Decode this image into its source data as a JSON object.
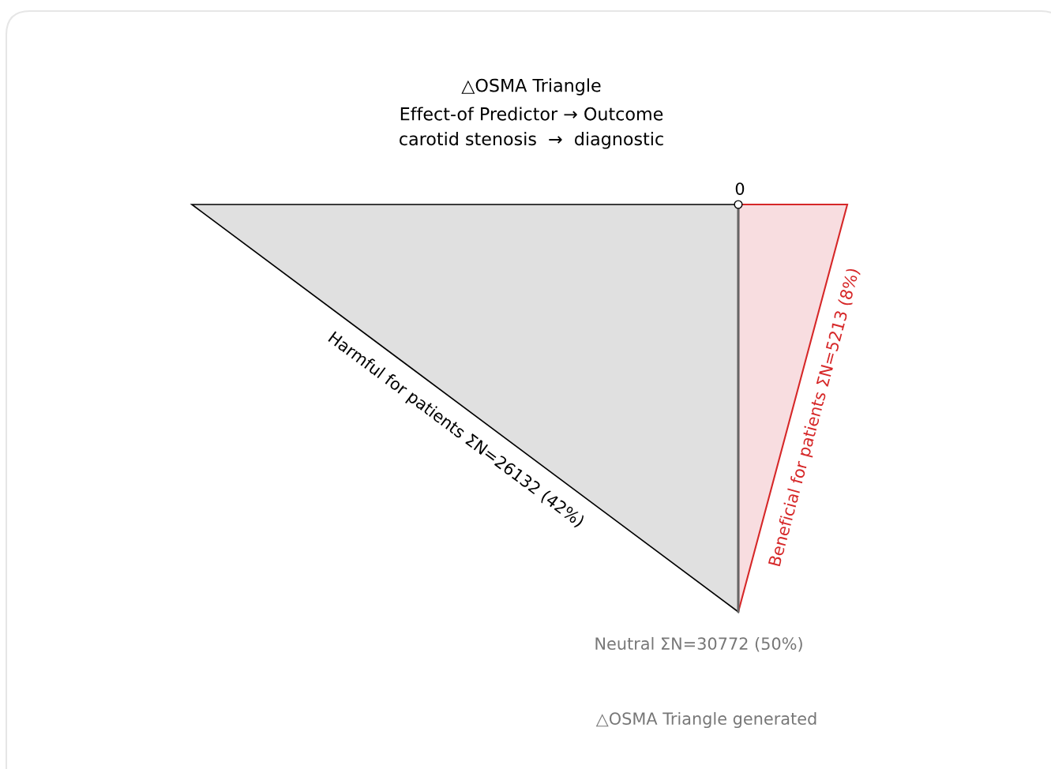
{
  "chart_data": {
    "type": "other",
    "title": "△OSMA Triangle",
    "subtitle": "Effect-of Predictor → Outcome\ncarotid stenosis  →  diagnostic",
    "categories": [
      "Harmful for patients ΣN=",
      "Neutral ΣN=",
      "Beneficial for patients ΣN="
    ],
    "values": [
      26132,
      30772,
      5213
    ],
    "data_labels": true,
    "colors": [
      "#e0e0e0",
      "#666666",
      "#f8dde0"
    ],
    "annotations": [
      "0",
      "(42%)",
      "(50%)",
      "(8%)",
      "△OSMA Triangle generated"
    ]
  }
}
